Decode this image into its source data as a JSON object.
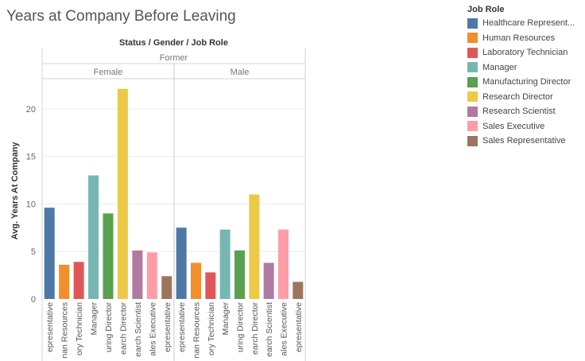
{
  "colors": {
    "Healthcare Representative": "#4e79a7",
    "Human Resources": "#f28e2b",
    "Laboratory Technician": "#e15759",
    "Manager": "#76b7b2",
    "Manufacturing Director": "#59a14f",
    "Research Director": "#edc948",
    "Research Scientist": "#b07aa1",
    "Sales Executive": "#ff9da7",
    "Sales Representative": "#9c755f"
  },
  "legend": {
    "title": "Job Role",
    "items": [
      {
        "label": "Healthcare Represent...",
        "role": "Healthcare Representative"
      },
      {
        "label": "Human Resources",
        "role": "Human Resources"
      },
      {
        "label": "Laboratory Technician",
        "role": "Laboratory Technician"
      },
      {
        "label": "Manager",
        "role": "Manager"
      },
      {
        "label": "Manufacturing Director",
        "role": "Manufacturing Director"
      },
      {
        "label": "Research Director",
        "role": "Research Director"
      },
      {
        "label": "Research Scientist",
        "role": "Research Scientist"
      },
      {
        "label": "Sales Executive",
        "role": "Sales Executive"
      },
      {
        "label": "Sales Representative",
        "role": "Sales Representative"
      }
    ]
  },
  "chart_data": {
    "type": "bar",
    "title": "Years at Company Before Leaving",
    "header_label": "Status / Gender / Job Role",
    "status": "Former",
    "ylabel": "Avg. Years At Company",
    "ylim": [
      0,
      23
    ],
    "yticks": [
      0,
      5,
      10,
      15,
      20
    ],
    "grid": true,
    "legend_position": "right",
    "categories": [
      "Healthcare Representative",
      "Human Resources",
      "Laboratory Technician",
      "Manager",
      "Manufacturing Director",
      "Research Director",
      "Research Scientist",
      "Sales Executive",
      "Sales Representative"
    ],
    "tick_labels": [
      "epresentative",
      "nan Resources",
      "ory Technician",
      "Manager",
      "uring Director",
      "earch Director",
      "earch Scientist",
      "ales Executive",
      "epresentative"
    ],
    "panels": [
      {
        "gender": "Female",
        "values": [
          9.6,
          3.6,
          3.9,
          13.0,
          9.0,
          22.1,
          5.1,
          4.9,
          2.4
        ]
      },
      {
        "gender": "Male",
        "values": [
          7.5,
          3.8,
          2.8,
          7.3,
          5.1,
          11.0,
          3.8,
          7.3,
          1.8
        ]
      }
    ]
  }
}
